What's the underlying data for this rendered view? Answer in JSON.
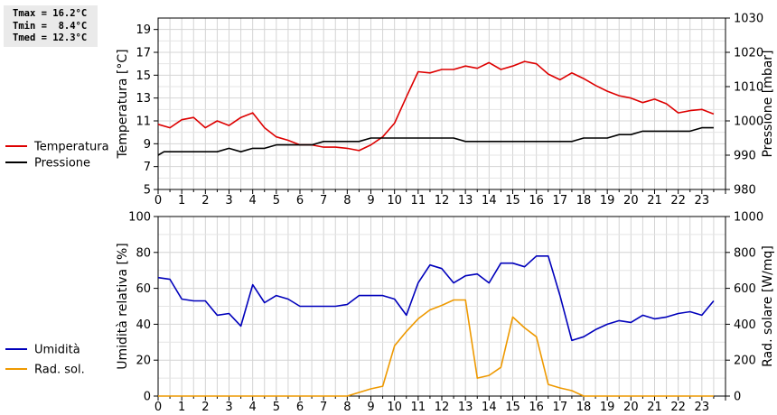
{
  "stats": {
    "lines": [
      "Tmax = 16.2°C",
      "Tmin =  8.4°C",
      "Tmed = 12.3°C"
    ]
  },
  "chart_data": [
    {
      "type": "line",
      "x_ticks": [
        "0",
        "1",
        "2",
        "3",
        "4",
        "5",
        "6",
        "7",
        "8",
        "9",
        "10",
        "11",
        "12",
        "13",
        "14",
        "15",
        "16",
        "17",
        "18",
        "19",
        "20",
        "21",
        "22",
        "23"
      ],
      "xlim": [
        0,
        24
      ],
      "ylabel": "Temperatura [°C]",
      "ylim": [
        5,
        20
      ],
      "y_ticks": [
        "5",
        "7",
        "9",
        "11",
        "13",
        "15",
        "17",
        "19"
      ],
      "y2label": "Pressione [mbar]",
      "y2lim": [
        980,
        1030
      ],
      "y2_ticks": [
        "980",
        "990",
        "1000",
        "1010",
        "1020",
        "1030"
      ],
      "grid": true,
      "legend_position": "left",
      "series": [
        {
          "name": "Temperatura",
          "color": "#dd0000",
          "axis": "left",
          "points": [
            [
              0,
              10.7
            ],
            [
              0.5,
              10.4
            ],
            [
              1,
              11.1
            ],
            [
              1.5,
              11.3
            ],
            [
              2,
              10.4
            ],
            [
              2.5,
              11.0
            ],
            [
              3,
              10.6
            ],
            [
              3.5,
              11.3
            ],
            [
              4,
              11.7
            ],
            [
              4.5,
              10.4
            ],
            [
              5,
              9.6
            ],
            [
              5.5,
              9.3
            ],
            [
              6,
              8.9
            ],
            [
              6.5,
              8.9
            ],
            [
              7,
              8.7
            ],
            [
              7.5,
              8.7
            ],
            [
              8,
              8.6
            ],
            [
              8.5,
              8.4
            ],
            [
              9,
              8.9
            ],
            [
              9.5,
              9.6
            ],
            [
              10,
              10.8
            ],
            [
              10.5,
              13.1
            ],
            [
              11,
              15.3
            ],
            [
              11.5,
              15.2
            ],
            [
              12,
              15.5
            ],
            [
              12.5,
              15.5
            ],
            [
              13,
              15.8
            ],
            [
              13.5,
              15.6
            ],
            [
              14,
              16.1
            ],
            [
              14.5,
              15.5
            ],
            [
              15,
              15.8
            ],
            [
              15.5,
              16.2
            ],
            [
              16,
              16.0
            ],
            [
              16.5,
              15.1
            ],
            [
              17,
              14.6
            ],
            [
              17.5,
              15.2
            ],
            [
              18,
              14.7
            ],
            [
              18.5,
              14.1
            ],
            [
              19,
              13.6
            ],
            [
              19.5,
              13.2
            ],
            [
              20,
              13.0
            ],
            [
              20.5,
              12.6
            ],
            [
              21,
              12.9
            ],
            [
              21.5,
              12.5
            ],
            [
              22,
              11.7
            ],
            [
              22.5,
              11.9
            ],
            [
              23,
              12.0
            ],
            [
              23.5,
              11.6
            ]
          ]
        },
        {
          "name": "Pressione",
          "color": "#000000",
          "axis": "right",
          "points": [
            [
              0,
              990
            ],
            [
              0.25,
              991
            ],
            [
              1,
              991
            ],
            [
              1.5,
              991
            ],
            [
              2,
              991
            ],
            [
              2.5,
              991
            ],
            [
              3,
              992
            ],
            [
              3.5,
              991
            ],
            [
              4,
              992
            ],
            [
              4.5,
              992
            ],
            [
              5,
              993
            ],
            [
              5.5,
              993
            ],
            [
              6,
              993
            ],
            [
              6.5,
              993
            ],
            [
              7,
              994
            ],
            [
              7.5,
              994
            ],
            [
              8,
              994
            ],
            [
              8.5,
              994
            ],
            [
              9,
              995
            ],
            [
              9.5,
              995
            ],
            [
              10,
              995
            ],
            [
              10.5,
              995
            ],
            [
              11,
              995
            ],
            [
              11.5,
              995
            ],
            [
              12,
              995
            ],
            [
              12.5,
              995
            ],
            [
              13,
              994
            ],
            [
              13.5,
              994
            ],
            [
              14,
              994
            ],
            [
              14.5,
              994
            ],
            [
              15,
              994
            ],
            [
              15.5,
              994
            ],
            [
              16,
              994
            ],
            [
              16.5,
              994
            ],
            [
              17,
              994
            ],
            [
              17.5,
              994
            ],
            [
              18,
              995
            ],
            [
              18.5,
              995
            ],
            [
              19,
              995
            ],
            [
              19.5,
              996
            ],
            [
              20,
              996
            ],
            [
              20.5,
              997
            ],
            [
              21,
              997
            ],
            [
              21.5,
              997
            ],
            [
              22,
              997
            ],
            [
              22.5,
              997
            ],
            [
              23,
              998
            ],
            [
              23.5,
              998
            ]
          ]
        }
      ]
    },
    {
      "type": "line",
      "x_ticks": [
        "0",
        "1",
        "2",
        "3",
        "4",
        "5",
        "6",
        "7",
        "8",
        "9",
        "10",
        "11",
        "12",
        "13",
        "14",
        "15",
        "16",
        "17",
        "18",
        "19",
        "20",
        "21",
        "22",
        "23"
      ],
      "xlim": [
        0,
        24
      ],
      "ylabel": "Umidità relativa [%]",
      "ylim": [
        0,
        100
      ],
      "y_ticks": [
        "0",
        "20",
        "40",
        "60",
        "80",
        "100"
      ],
      "y2label": "Rad. solare [W/mq]",
      "y2lim": [
        0,
        1000
      ],
      "y2_ticks": [
        "0",
        "200",
        "400",
        "600",
        "800",
        "1000"
      ],
      "grid": true,
      "legend_position": "left",
      "series": [
        {
          "name": "Umidità",
          "color": "#0000bb",
          "axis": "left",
          "points": [
            [
              0,
              66
            ],
            [
              0.5,
              65
            ],
            [
              1,
              54
            ],
            [
              1.5,
              53
            ],
            [
              2,
              53
            ],
            [
              2.5,
              45
            ],
            [
              3,
              46
            ],
            [
              3.5,
              39
            ],
            [
              4,
              62
            ],
            [
              4.5,
              52
            ],
            [
              5,
              56
            ],
            [
              5.5,
              54
            ],
            [
              6,
              50
            ],
            [
              6.5,
              50
            ],
            [
              7,
              50
            ],
            [
              7.5,
              50
            ],
            [
              8,
              51
            ],
            [
              8.5,
              56
            ],
            [
              9,
              56
            ],
            [
              9.5,
              56
            ],
            [
              10,
              54
            ],
            [
              10.5,
              45
            ],
            [
              11,
              63
            ],
            [
              11.5,
              73
            ],
            [
              12,
              71
            ],
            [
              12.5,
              63
            ],
            [
              13,
              67
            ],
            [
              13.5,
              68
            ],
            [
              14,
              63
            ],
            [
              14.5,
              74
            ],
            [
              15,
              74
            ],
            [
              15.5,
              72
            ],
            [
              16,
              78
            ],
            [
              16.5,
              78
            ],
            [
              17,
              56
            ],
            [
              17.5,
              31
            ],
            [
              18,
              33
            ],
            [
              18.5,
              37
            ],
            [
              19,
              40
            ],
            [
              19.5,
              42
            ],
            [
              20,
              41
            ],
            [
              20.5,
              45
            ],
            [
              21,
              43
            ],
            [
              21.5,
              44
            ],
            [
              22,
              46
            ],
            [
              22.5,
              47
            ],
            [
              23,
              45
            ],
            [
              23.5,
              53
            ]
          ]
        },
        {
          "name": "Rad. sol.",
          "color": "#ee9900",
          "axis": "right",
          "points": [
            [
              0,
              0
            ],
            [
              0.5,
              0
            ],
            [
              1,
              0
            ],
            [
              1.5,
              0
            ],
            [
              2,
              0
            ],
            [
              2.5,
              0
            ],
            [
              3,
              0
            ],
            [
              3.5,
              0
            ],
            [
              4,
              0
            ],
            [
              4.5,
              0
            ],
            [
              5,
              0
            ],
            [
              5.5,
              0
            ],
            [
              6,
              0
            ],
            [
              6.5,
              0
            ],
            [
              7,
              0
            ],
            [
              7.5,
              0
            ],
            [
              8,
              0
            ],
            [
              8.5,
              20
            ],
            [
              9,
              40
            ],
            [
              9.5,
              55
            ],
            [
              10,
              280
            ],
            [
              10.5,
              360
            ],
            [
              11,
              430
            ],
            [
              11.5,
              480
            ],
            [
              12,
              505
            ],
            [
              12.5,
              535
            ],
            [
              13,
              535
            ],
            [
              13.5,
              100
            ],
            [
              14,
              115
            ],
            [
              14.5,
              160
            ],
            [
              15,
              440
            ],
            [
              15.5,
              380
            ],
            [
              16,
              330
            ],
            [
              16.5,
              65
            ],
            [
              17,
              45
            ],
            [
              17.5,
              30
            ],
            [
              18,
              0
            ],
            [
              18.5,
              0
            ],
            [
              19,
              0
            ],
            [
              19.5,
              0
            ],
            [
              20,
              0
            ],
            [
              20.5,
              0
            ],
            [
              21,
              0
            ],
            [
              21.5,
              0
            ],
            [
              22,
              0
            ],
            [
              22.5,
              0
            ],
            [
              23,
              0
            ],
            [
              23.5,
              0
            ]
          ]
        }
      ]
    }
  ]
}
